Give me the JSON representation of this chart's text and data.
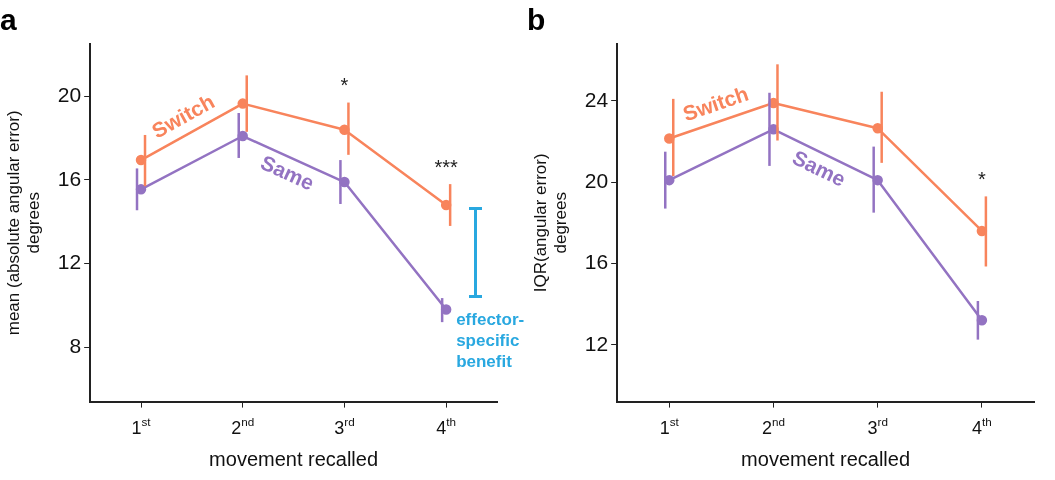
{
  "chart_data": [
    {
      "type": "line",
      "title": "a",
      "xlabel": "movement recalled",
      "ylabel": "mean (absolute angular error)\ndegrees",
      "categories": [
        "1$^{st}$",
        "2$^{nd}$",
        "3$^{rd}$",
        "4$^{th}$"
      ],
      "ylim": [
        5.4,
        22.5
      ],
      "yticks": [
        8,
        12,
        16,
        20
      ],
      "grid": false,
      "legend": false,
      "marker": "circle",
      "series": [
        {
          "name": "Switch",
          "color": "#f8845c",
          "values": [
            16.95,
            19.65,
            18.4,
            14.8
          ],
          "errors": [
            [
              15.7,
              18.15
            ],
            [
              18.3,
              21.0
            ],
            [
              17.2,
              19.7
            ],
            [
              13.8,
              15.8
            ]
          ]
        },
        {
          "name": "Same",
          "color": "#9373c2",
          "values": [
            15.55,
            18.1,
            15.9,
            9.8
          ],
          "errors": [
            [
              14.55,
              16.55
            ],
            [
              17.05,
              19.2
            ],
            [
              14.85,
              16.95
            ],
            [
              9.2,
              10.35
            ]
          ]
        }
      ],
      "annotations": [
        {
          "text": "*",
          "x": "3$^{rd}$",
          "y": 18.4
        },
        {
          "text": "***",
          "x": "4$^{th}$",
          "y": 14.8
        },
        {
          "text": "effector-specific benefit",
          "x": "4$^{th}$",
          "y": 9.8
        }
      ]
    },
    {
      "type": "line",
      "title": "b",
      "xlabel": "movement recalled",
      "ylabel": "IQR(angular error)\ndegrees",
      "categories": [
        "1$^{st}$",
        "2$^{nd}$",
        "3$^{rd}$",
        "4$^{th}$"
      ],
      "ylim": [
        9.2,
        26.8
      ],
      "yticks": [
        12,
        16,
        20,
        24
      ],
      "grid": false,
      "legend": false,
      "marker": "circle",
      "series": [
        {
          "name": "Switch",
          "color": "#f8845c",
          "values": [
            22.15,
            23.9,
            22.65,
            17.6
          ],
          "errors": [
            [
              20.3,
              24.1
            ],
            [
              22.05,
              25.8
            ],
            [
              20.95,
              24.45
            ],
            [
              15.85,
              19.3
            ]
          ]
        },
        {
          "name": "Same",
          "color": "#9373c2",
          "values": [
            20.1,
            22.6,
            20.1,
            13.2
          ],
          "errors": [
            [
              18.7,
              21.5
            ],
            [
              20.8,
              24.4
            ],
            [
              18.5,
              21.75
            ],
            [
              12.25,
              14.15
            ]
          ]
        }
      ],
      "annotations": [
        {
          "text": "*",
          "x": "4$^{th}$",
          "y": 17.6
        }
      ]
    }
  ]
}
